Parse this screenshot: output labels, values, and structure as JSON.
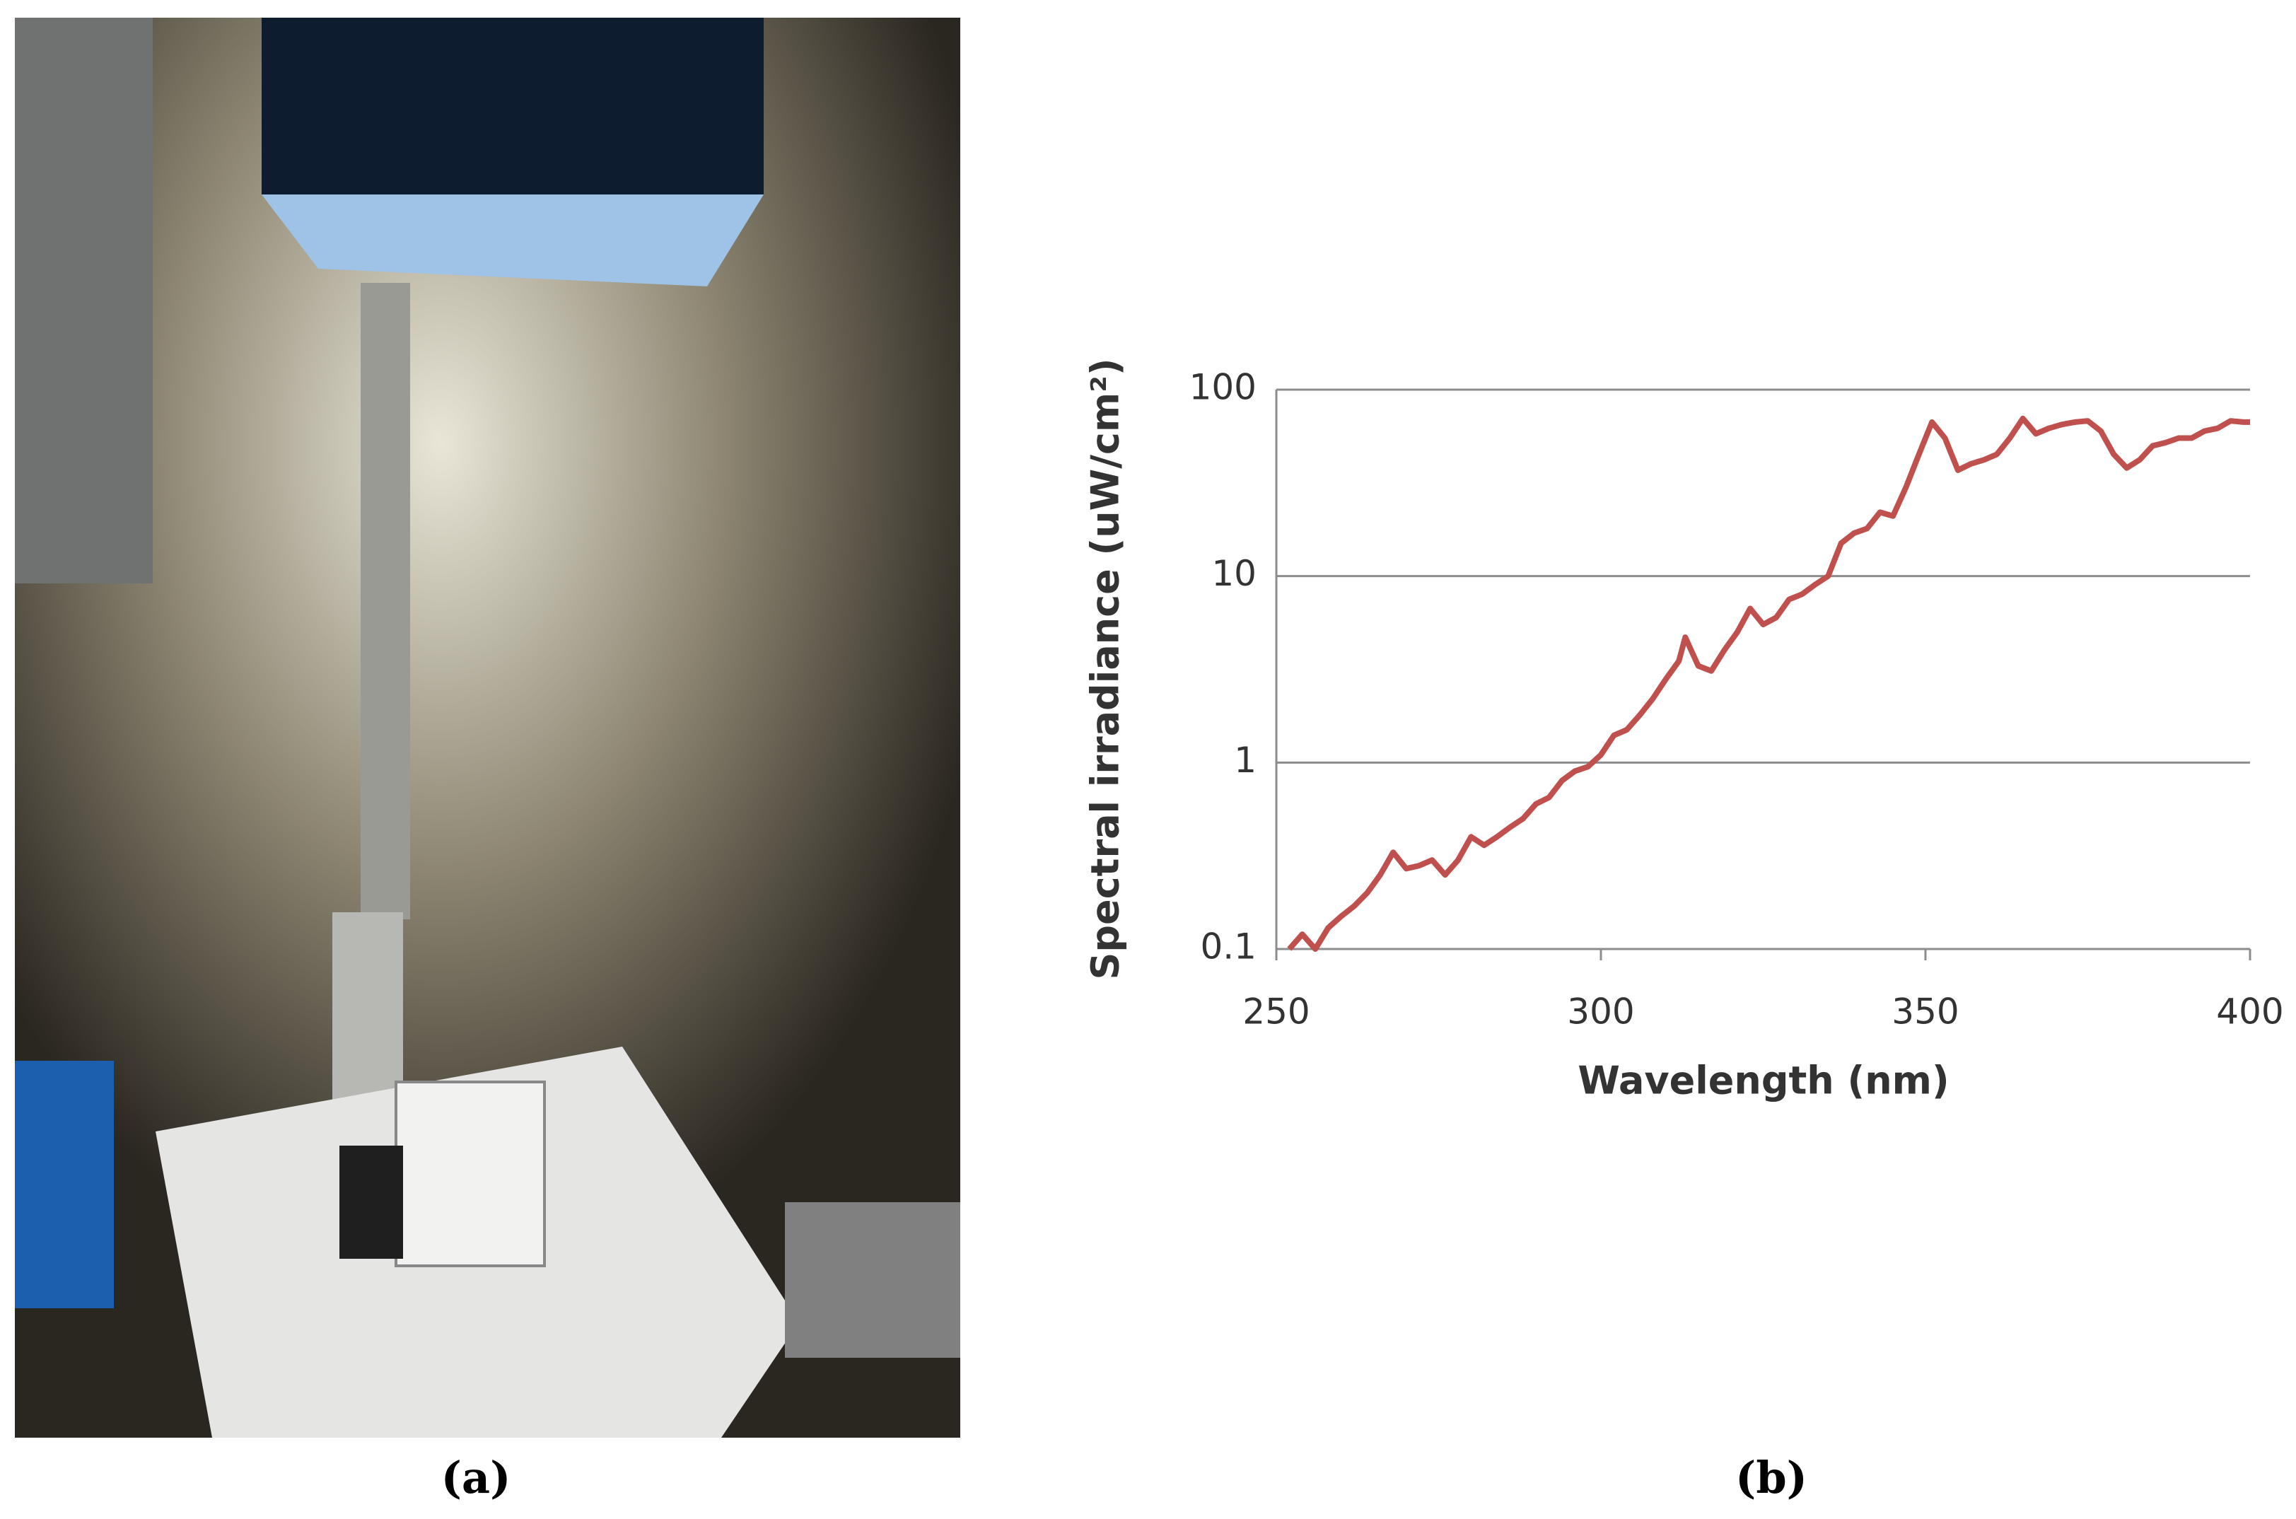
{
  "panel_labels": [
    "(a)",
    "(b)"
  ],
  "chart_data": {
    "type": "line",
    "x_label": "Wavelength (nm)",
    "y_label": "Spectral irradiance (uW/cm²)",
    "x": [
      252,
      254,
      256,
      258,
      260,
      262,
      264,
      266,
      268,
      270,
      272,
      274,
      276,
      278,
      280,
      282,
      284,
      286,
      288,
      290,
      292,
      294,
      296,
      298,
      300,
      302,
      304,
      306,
      308,
      310,
      312,
      313,
      315,
      317,
      319,
      321,
      323,
      325,
      327,
      329,
      331,
      333,
      335,
      337,
      339,
      341,
      343,
      345,
      347,
      349,
      351,
      353,
      355,
      357,
      359,
      361,
      363,
      365,
      367,
      369,
      371,
      373,
      375,
      377,
      379,
      381,
      383,
      385,
      387,
      389,
      391,
      393,
      395,
      397,
      399,
      400
    ],
    "values": [
      0.1,
      0.12,
      0.1,
      0.13,
      0.15,
      0.17,
      0.2,
      0.25,
      0.33,
      0.27,
      0.28,
      0.3,
      0.25,
      0.3,
      0.4,
      0.36,
      0.4,
      0.45,
      0.5,
      0.6,
      0.65,
      0.8,
      0.9,
      0.95,
      1.1,
      1.4,
      1.5,
      1.8,
      2.2,
      2.8,
      3.5,
      4.7,
      3.3,
      3.1,
      4.0,
      5.0,
      6.7,
      5.5,
      6.0,
      7.5,
      8,
      9,
      10,
      15,
      17,
      18,
      22,
      21,
      30,
      45,
      67,
      55,
      37,
      40,
      42,
      45,
      55,
      70,
      58,
      62,
      65,
      67,
      68,
      60,
      45,
      38,
      42,
      50,
      52,
      55,
      55,
      60,
      62,
      68,
      67,
      67
    ],
    "color": "#c0504d",
    "xlim": [
      250,
      400
    ],
    "xticks": [
      250,
      300,
      350,
      400
    ],
    "ylim": [
      0.1,
      100
    ],
    "yticks": [
      0.1,
      1,
      10,
      100
    ],
    "log_y": true,
    "grid": true
  }
}
